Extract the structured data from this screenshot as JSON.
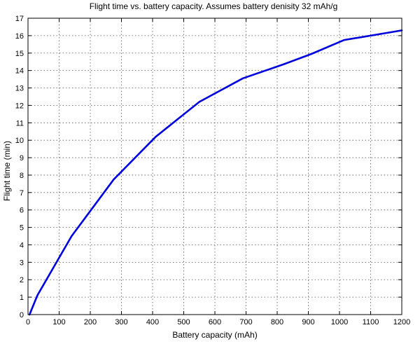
{
  "chart_data": {
    "type": "line",
    "title": "Flight time vs. battery capacity. Assumes battery denisity 32 mAh/g",
    "xlabel": "Battery capacity (mAh)",
    "ylabel": "Flight time (min)",
    "xlim": [
      0,
      1200
    ],
    "ylim": [
      0,
      17
    ],
    "xticks": [
      0,
      100,
      200,
      300,
      400,
      500,
      600,
      700,
      800,
      900,
      1000,
      1100,
      1200
    ],
    "yticks": [
      0,
      1,
      2,
      3,
      4,
      5,
      6,
      7,
      8,
      9,
      10,
      11,
      12,
      13,
      14,
      15,
      16,
      17
    ],
    "grid": true,
    "series": [
      {
        "color": "#0000dd",
        "x": [
          5,
          30,
          140,
          275,
          410,
          550,
          690,
          820,
          910,
          1015,
          1200
        ],
        "y": [
          0,
          1.1,
          4.5,
          7.75,
          10.2,
          12.2,
          13.55,
          14.35,
          14.95,
          15.75,
          16.3
        ]
      }
    ]
  }
}
